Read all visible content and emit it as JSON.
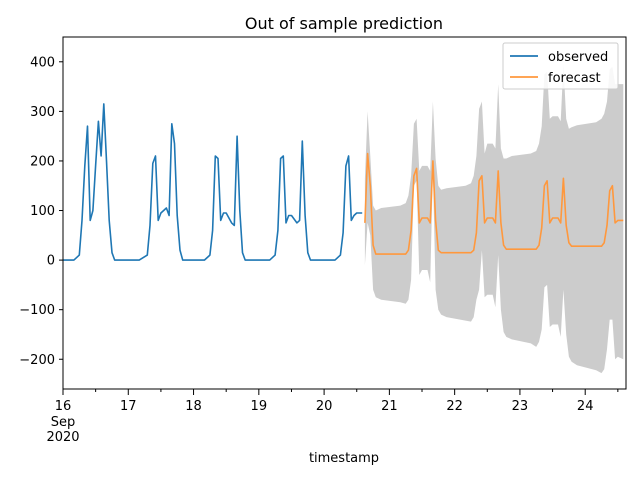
{
  "chart_data": {
    "type": "line",
    "title": "Out of sample prediction",
    "xlabel": "timestamp",
    "ylabel": "",
    "xlim": [
      "2020-09-16T00:00",
      "2020-09-24T15:00"
    ],
    "ylim": [
      -260,
      450
    ],
    "x_ticks": [
      {
        "label": "16",
        "sublabels": [
          "Sep",
          "2020"
        ],
        "at": "2020-09-16"
      },
      {
        "label": "17",
        "at": "2020-09-17"
      },
      {
        "label": "18",
        "at": "2020-09-18"
      },
      {
        "label": "19",
        "at": "2020-09-19"
      },
      {
        "label": "20",
        "at": "2020-09-20"
      },
      {
        "label": "21",
        "at": "2020-09-21"
      },
      {
        "label": "22",
        "at": "2020-09-22"
      },
      {
        "label": "23",
        "at": "2020-09-23"
      },
      {
        "label": "24",
        "at": "2020-09-24"
      }
    ],
    "y_ticks": [
      {
        "label": "−200",
        "value": -200
      },
      {
        "label": "−100",
        "value": -100
      },
      {
        "label": "0",
        "value": 0
      },
      {
        "label": "100",
        "value": 100
      },
      {
        "label": "200",
        "value": 200
      },
      {
        "label": "300",
        "value": 300
      },
      {
        "label": "400",
        "value": 400
      }
    ],
    "legend": {
      "placement": "upper right",
      "entries": [
        "observed",
        "forecast"
      ]
    },
    "grid": false,
    "series": [
      {
        "name": "observed",
        "color": "#1f77b4",
        "x": [
          "2020-09-16T00:00",
          "2020-09-16T04:00",
          "2020-09-16T06:00",
          "2020-09-16T07:00",
          "2020-09-16T08:00",
          "2020-09-16T09:00",
          "2020-09-16T10:00",
          "2020-09-16T11:00",
          "2020-09-16T12:00",
          "2020-09-16T13:00",
          "2020-09-16T14:00",
          "2020-09-16T15:00",
          "2020-09-16T16:00",
          "2020-09-16T17:00",
          "2020-09-16T18:00",
          "2020-09-16T19:00",
          "2020-09-16T20:00",
          "2020-09-16T21:00",
          "2020-09-16T23:00",
          "2020-09-17T04:00",
          "2020-09-17T07:00",
          "2020-09-17T08:00",
          "2020-09-17T09:00",
          "2020-09-17T10:00",
          "2020-09-17T11:00",
          "2020-09-17T12:00",
          "2020-09-17T14:00",
          "2020-09-17T15:00",
          "2020-09-17T16:00",
          "2020-09-17T17:00",
          "2020-09-17T18:00",
          "2020-09-17T19:00",
          "2020-09-17T20:00",
          "2020-09-17T21:00",
          "2020-09-17T23:00",
          "2020-09-18T04:00",
          "2020-09-18T06:00",
          "2020-09-18T07:00",
          "2020-09-18T08:00",
          "2020-09-18T09:00",
          "2020-09-18T10:00",
          "2020-09-18T11:00",
          "2020-09-18T12:00",
          "2020-09-18T14:00",
          "2020-09-18T15:00",
          "2020-09-18T16:00",
          "2020-09-18T17:00",
          "2020-09-18T18:00",
          "2020-09-18T19:00",
          "2020-09-18T20:00",
          "2020-09-18T21:00",
          "2020-09-18T23:00",
          "2020-09-19T04:00",
          "2020-09-19T06:00",
          "2020-09-19T07:00",
          "2020-09-19T08:00",
          "2020-09-19T09:00",
          "2020-09-19T10:00",
          "2020-09-19T11:00",
          "2020-09-19T12:00",
          "2020-09-19T14:00",
          "2020-09-19T15:00",
          "2020-09-19T16:00",
          "2020-09-19T17:00",
          "2020-09-19T18:00",
          "2020-09-19T19:00",
          "2020-09-19T20:00",
          "2020-09-19T21:00",
          "2020-09-19T23:00",
          "2020-09-20T04:00",
          "2020-09-20T06:00",
          "2020-09-20T07:00",
          "2020-09-20T08:00",
          "2020-09-20T09:00",
          "2020-09-20T10:00",
          "2020-09-20T11:00",
          "2020-09-20T12:00",
          "2020-09-20T14:00"
        ],
        "values": [
          0,
          0,
          10,
          80,
          190,
          270,
          80,
          100,
          190,
          280,
          210,
          315,
          200,
          80,
          15,
          0,
          0,
          0,
          0,
          0,
          10,
          70,
          195,
          210,
          80,
          95,
          105,
          90,
          275,
          235,
          90,
          20,
          0,
          0,
          0,
          0,
          10,
          60,
          210,
          205,
          80,
          95,
          95,
          75,
          70,
          250,
          100,
          15,
          0,
          0,
          0,
          0,
          0,
          10,
          60,
          205,
          210,
          75,
          90,
          90,
          75,
          80,
          240,
          90,
          15,
          0,
          0,
          0,
          0,
          0,
          10,
          55,
          190,
          210,
          80,
          90,
          95,
          95
        ]
      },
      {
        "name": "forecast",
        "color": "#ff983d",
        "x": [
          "2020-09-20T15:00",
          "2020-09-20T16:00",
          "2020-09-20T17:00",
          "2020-09-20T18:00",
          "2020-09-20T19:00",
          "2020-09-20T21:00",
          "2020-09-21T04:00",
          "2020-09-21T06:00",
          "2020-09-21T07:00",
          "2020-09-21T08:00",
          "2020-09-21T09:00",
          "2020-09-21T10:00",
          "2020-09-21T11:00",
          "2020-09-21T12:00",
          "2020-09-21T14:00",
          "2020-09-21T15:00",
          "2020-09-21T16:00",
          "2020-09-21T17:00",
          "2020-09-21T18:00",
          "2020-09-21T19:00",
          "2020-09-21T21:00",
          "2020-09-22T04:00",
          "2020-09-22T06:00",
          "2020-09-22T07:00",
          "2020-09-22T08:00",
          "2020-09-22T09:00",
          "2020-09-22T10:00",
          "2020-09-22T11:00",
          "2020-09-22T12:00",
          "2020-09-22T14:00",
          "2020-09-22T15:00",
          "2020-09-22T16:00",
          "2020-09-22T17:00",
          "2020-09-22T18:00",
          "2020-09-22T19:00",
          "2020-09-22T21:00",
          "2020-09-23T04:00",
          "2020-09-23T06:00",
          "2020-09-23T07:00",
          "2020-09-23T08:00",
          "2020-09-23T09:00",
          "2020-09-23T10:00",
          "2020-09-23T11:00",
          "2020-09-23T12:00",
          "2020-09-23T14:00",
          "2020-09-23T15:00",
          "2020-09-23T16:00",
          "2020-09-23T17:00",
          "2020-09-23T18:00",
          "2020-09-23T19:00",
          "2020-09-23T21:00",
          "2020-09-24T04:00",
          "2020-09-24T06:00",
          "2020-09-24T07:00",
          "2020-09-24T08:00",
          "2020-09-24T09:00",
          "2020-09-24T10:00",
          "2020-09-24T11:00",
          "2020-09-24T12:00",
          "2020-09-24T14:00"
        ],
        "values": [
          75,
          215,
          150,
          30,
          12,
          12,
          12,
          12,
          20,
          60,
          170,
          185,
          75,
          85,
          85,
          75,
          200,
          80,
          20,
          15,
          15,
          15,
          15,
          20,
          55,
          160,
          170,
          75,
          85,
          85,
          75,
          180,
          75,
          30,
          22,
          22,
          22,
          22,
          30,
          65,
          150,
          160,
          75,
          85,
          85,
          75,
          165,
          70,
          35,
          28,
          28,
          28,
          28,
          35,
          70,
          140,
          150,
          75,
          80,
          80
        ],
        "lower": [
          -10,
          75,
          50,
          -60,
          -75,
          -80,
          -85,
          -88,
          -80,
          -40,
          150,
          160,
          -30,
          -20,
          -20,
          -45,
          180,
          -60,
          -100,
          -110,
          -115,
          -122,
          -124,
          -115,
          -80,
          -60,
          20,
          -75,
          -70,
          -70,
          -95,
          10,
          -100,
          -145,
          -155,
          -160,
          -168,
          -175,
          -165,
          -140,
          -55,
          -50,
          -135,
          -130,
          -130,
          -155,
          -60,
          -150,
          -195,
          -205,
          -212,
          -222,
          -228,
          -220,
          -180,
          -120,
          -120,
          -200,
          -195,
          -200
        ],
        "upper": [
          165,
          300,
          210,
          110,
          100,
          105,
          110,
          115,
          130,
          170,
          275,
          285,
          180,
          190,
          190,
          180,
          320,
          205,
          150,
          142,
          145,
          150,
          155,
          170,
          210,
          305,
          320,
          215,
          235,
          235,
          225,
          355,
          225,
          205,
          205,
          210,
          215,
          220,
          235,
          270,
          375,
          380,
          285,
          290,
          290,
          280,
          395,
          285,
          265,
          268,
          272,
          278,
          285,
          295,
          320,
          385,
          390,
          355,
          355,
          355
        ]
      }
    ]
  }
}
